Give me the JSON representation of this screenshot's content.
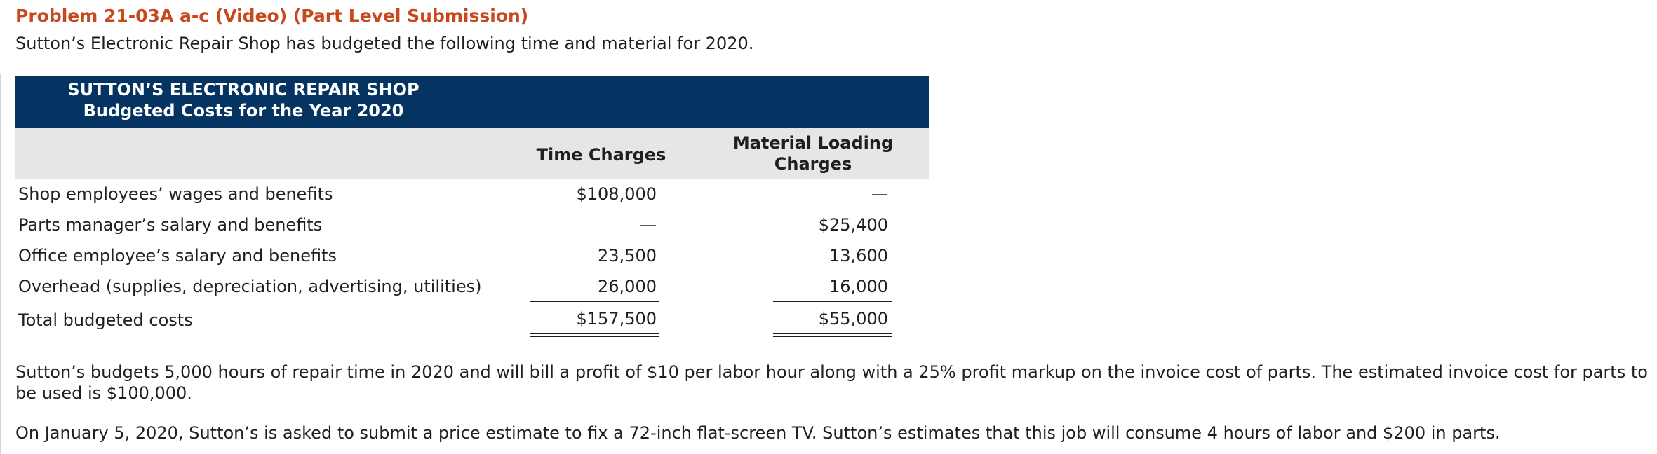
{
  "problem_title": "Problem 21-03A a-c (Video) (Part Level Submission)",
  "intro_text": "Sutton’s Electronic Repair Shop has budgeted the following time and material for 2020.",
  "table": {
    "title_line1": "SUTTON’S ELECTRONIC REPAIR SHOP",
    "title_line2": "Budgeted Costs for the Year 2020",
    "col_time": "Time Charges",
    "col_material_line1": "Material Loading",
    "col_material_line2": "Charges",
    "rows": [
      {
        "label": "Shop employees’ wages and benefits",
        "time": "$108,000",
        "material": "—"
      },
      {
        "label": "Parts manager’s salary and benefits",
        "time": "—",
        "material": "$25,400"
      },
      {
        "label": "Office employee’s salary and benefits",
        "time": "23,500",
        "material": "13,600"
      },
      {
        "label": "Overhead (supplies, depreciation, advertising, utilities)",
        "time": "26,000",
        "material": "16,000"
      },
      {
        "label": "Total budgeted costs",
        "time": "$157,500",
        "material": "$55,000"
      }
    ],
    "header_color": "#053362",
    "subheader_color": "#e6e6e6"
  },
  "paragraph1": "Sutton’s budgets 5,000 hours of repair time in 2020 and will bill a profit of $10 per labor hour along with a 25% profit markup on the invoice cost of parts. The estimated invoice cost for parts to be used is $100,000.",
  "paragraph2": "On January 5, 2020, Sutton’s is asked to submit a price estimate to fix a 72-inch flat-screen TV. Sutton’s estimates that this job will consume 4 hours of labor and $200 in parts.",
  "title_color": "#c8481e"
}
